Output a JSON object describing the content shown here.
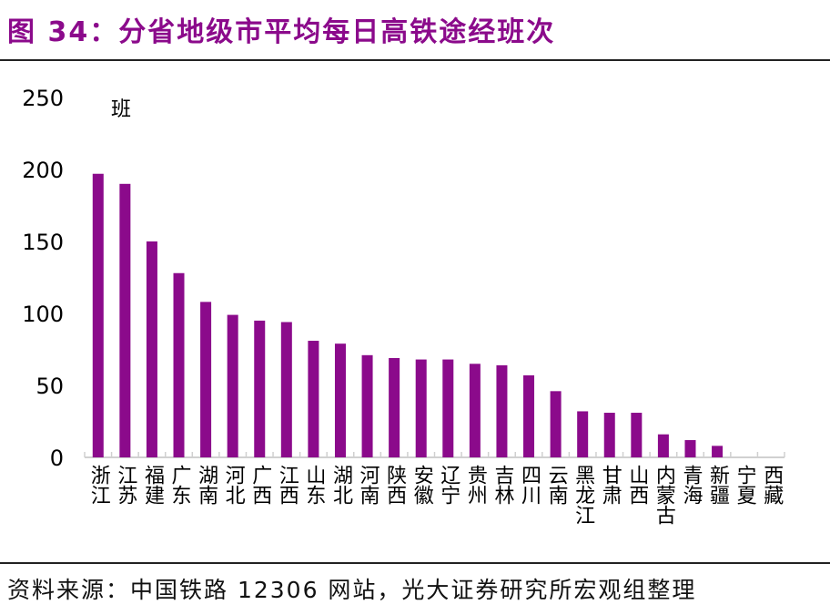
{
  "title": "图 34：分省地级市平均每日高铁途经班次",
  "source": "资料来源：中国铁路 12306 网站，光大证券研究所宏观组整理",
  "chart_data": {
    "type": "bar",
    "title": "图 34：分省地级市平均每日高铁途经班次",
    "ylabel": "班",
    "ylim": [
      0,
      250
    ],
    "yticks": [
      0,
      50,
      100,
      150,
      200,
      250
    ],
    "grid": false,
    "color": "#8B0A8B",
    "categories": [
      "浙江",
      "江苏",
      "福建",
      "广东",
      "湖南",
      "河北",
      "广西",
      "江西",
      "山东",
      "湖北",
      "河南",
      "陕西",
      "安徽",
      "辽宁",
      "贵州",
      "吉林",
      "四川",
      "云南",
      "黑龙江",
      "甘肃",
      "山西",
      "内蒙古",
      "青海",
      "新疆",
      "宁夏",
      "西藏"
    ],
    "values": [
      197,
      190,
      150,
      128,
      108,
      99,
      95,
      94,
      81,
      79,
      71,
      69,
      68,
      68,
      65,
      64,
      57,
      46,
      32,
      31,
      31,
      16,
      12,
      8,
      0,
      0
    ]
  }
}
